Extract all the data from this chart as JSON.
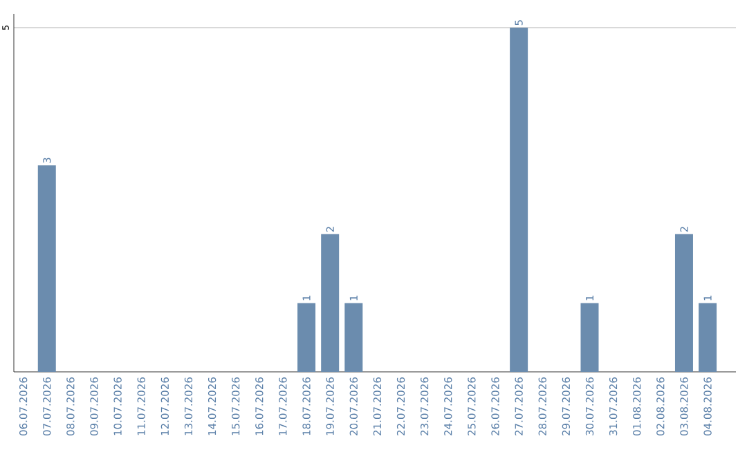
{
  "chart_data": {
    "type": "bar",
    "categories": [
      "06.07.2026",
      "07.07.2026",
      "08.07.2026",
      "09.07.2026",
      "10.07.2026",
      "11.07.2026",
      "12.07.2026",
      "13.07.2026",
      "14.07.2026",
      "15.07.2026",
      "16.07.2026",
      "17.07.2026",
      "18.07.2026",
      "19.07.2026",
      "20.07.2026",
      "21.07.2026",
      "22.07.2026",
      "23.07.2026",
      "24.07.2026",
      "25.07.2026",
      "26.07.2026",
      "27.07.2026",
      "28.07.2026",
      "29.07.2026",
      "30.07.2026",
      "31.07.2026",
      "01.08.2026",
      "02.08.2026",
      "03.08.2026",
      "04.08.2026"
    ],
    "values": [
      0,
      3,
      0,
      0,
      0,
      0,
      0,
      0,
      0,
      0,
      0,
      0,
      1,
      2,
      1,
      0,
      0,
      0,
      0,
      0,
      0,
      5,
      0,
      0,
      1,
      0,
      0,
      0,
      2,
      1
    ],
    "color": "#6b8cae",
    "value_labels": [
      null,
      "3",
      null,
      null,
      null,
      null,
      null,
      null,
      null,
      null,
      null,
      null,
      "1",
      "2",
      "1",
      null,
      null,
      null,
      null,
      null,
      null,
      "5",
      null,
      null,
      "1",
      null,
      null,
      null,
      "2",
      "1"
    ],
    "ylim": [
      0,
      5.2
    ],
    "yticks": [
      5
    ],
    "grid": "y"
  }
}
